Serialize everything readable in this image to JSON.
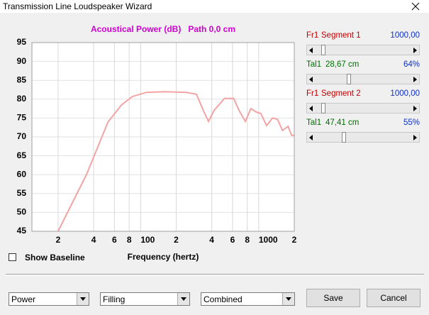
{
  "window": {
    "title": "Transmission Line Loudspeaker Wizard"
  },
  "chart_data": {
    "type": "line",
    "title": "Acoustical Power (dB)   Path 0,0 cm",
    "x_label": "Frequency (hertz)",
    "x": [
      20,
      35,
      53,
      69,
      85,
      112,
      159,
      242,
      297,
      340,
      376,
      418,
      512,
      614,
      682,
      770,
      858,
      955,
      1043,
      1164,
      1310,
      1440,
      1590,
      1770,
      1900,
      2000
    ],
    "values": [
      45,
      60.2,
      74,
      78.5,
      80.7,
      81.8,
      82,
      81.8,
      81.3,
      77,
      74.1,
      77,
      80.2,
      80.2,
      77,
      74.1,
      77.5,
      76.6,
      76.2,
      73,
      75,
      74.7,
      71.7,
      72.8,
      70.4,
      70.4
    ],
    "color": "#f2a4a4",
    "title_color": "#d000d0",
    "log_x": true,
    "grid": true,
    "xlim": [
      12,
      2000
    ],
    "ylim": [
      45,
      95
    ],
    "xticks": [
      {
        "value": 20,
        "label": "2"
      },
      {
        "value": 40,
        "label": "4"
      },
      {
        "value": 60,
        "label": "6"
      },
      {
        "value": 80,
        "label": "8"
      },
      100,
      {
        "value": 200,
        "label": "2"
      },
      {
        "value": 400,
        "label": "4"
      },
      {
        "value": 600,
        "label": "6"
      },
      {
        "value": 800,
        "label": "8"
      },
      1000,
      {
        "value": 2000,
        "label": "2"
      }
    ],
    "yticks": [
      45,
      50,
      55,
      60,
      65,
      70,
      75,
      80,
      85,
      90,
      95
    ]
  },
  "controls": {
    "rows": [
      {
        "label": "Fr1",
        "text": "Segment 1",
        "value": "1000,00"
      },
      {
        "label": "Tal1",
        "text": "28,67 cm",
        "value": "64%"
      },
      {
        "label": "Fr1",
        "text": "Segment 2",
        "value": "1000,00"
      },
      {
        "label": "Tal1",
        "text": "47,41 cm",
        "value": "55%"
      }
    ],
    "show_baseline": "Show Baseline",
    "dropdowns": [
      "Power",
      "Filling",
      "Combined"
    ],
    "buttons": [
      "Save",
      "Cancel"
    ]
  }
}
